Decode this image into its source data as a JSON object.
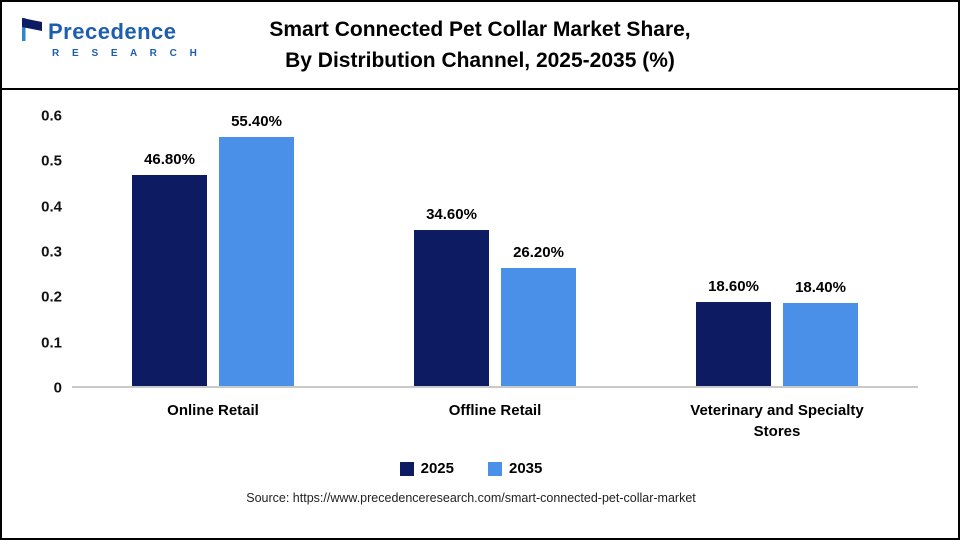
{
  "header": {
    "title_line1": "Smart Connected Pet Collar Market Share,",
    "title_line2": "By Distribution Channel, 2025-2035 (%)",
    "logo": {
      "name": "Precedence",
      "subtext": "R E S E A R C H",
      "color": "#1d5fae"
    }
  },
  "chart_data": {
    "type": "bar",
    "title": "Smart Connected Pet Collar Market Share, By Distribution Channel, 2025-2035 (%)",
    "categories": [
      "Online Retail",
      "Offline Retail",
      "Veterinary and Specialty Stores"
    ],
    "series": [
      {
        "name": "2025",
        "color": "#0d1b63",
        "values": [
          0.468,
          0.346,
          0.186
        ],
        "labels": [
          "46.80%",
          "34.60%",
          "18.60%"
        ]
      },
      {
        "name": "2035",
        "color": "#4a90e8",
        "values": [
          0.554,
          0.262,
          0.184
        ],
        "labels": [
          "55.40%",
          "26.20%",
          "18.40%"
        ]
      }
    ],
    "xlabel": "",
    "ylabel": "",
    "ylim": [
      0,
      0.6
    ],
    "y_ticks": [
      "0",
      "0.1",
      "0.2",
      "0.3",
      "0.4",
      "0.5",
      "0.6"
    ],
    "grid": false,
    "legend_position": "bottom"
  },
  "footer": {
    "source": "Source: https://www.precedenceresearch.com/smart-connected-pet-collar-market"
  }
}
